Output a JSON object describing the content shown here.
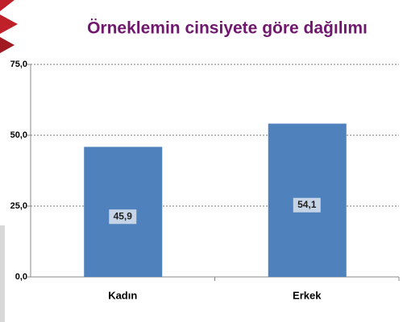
{
  "chart_data": {
    "type": "bar",
    "title": "Örneklemin cinsiyete göre dağılımı",
    "categories": [
      "Kadın",
      "Erkek"
    ],
    "values": [
      45.9,
      54.1
    ],
    "value_labels": [
      "45,9",
      "54,1"
    ],
    "color": "#4f81bd",
    "ylim": [
      0,
      75
    ],
    "yticks": [
      {
        "value": 0,
        "label": "0,0"
      },
      {
        "value": 25,
        "label": "25,0"
      },
      {
        "value": 50,
        "label": "50,0"
      },
      {
        "value": 75,
        "label": "75,0"
      }
    ],
    "grid": true
  }
}
